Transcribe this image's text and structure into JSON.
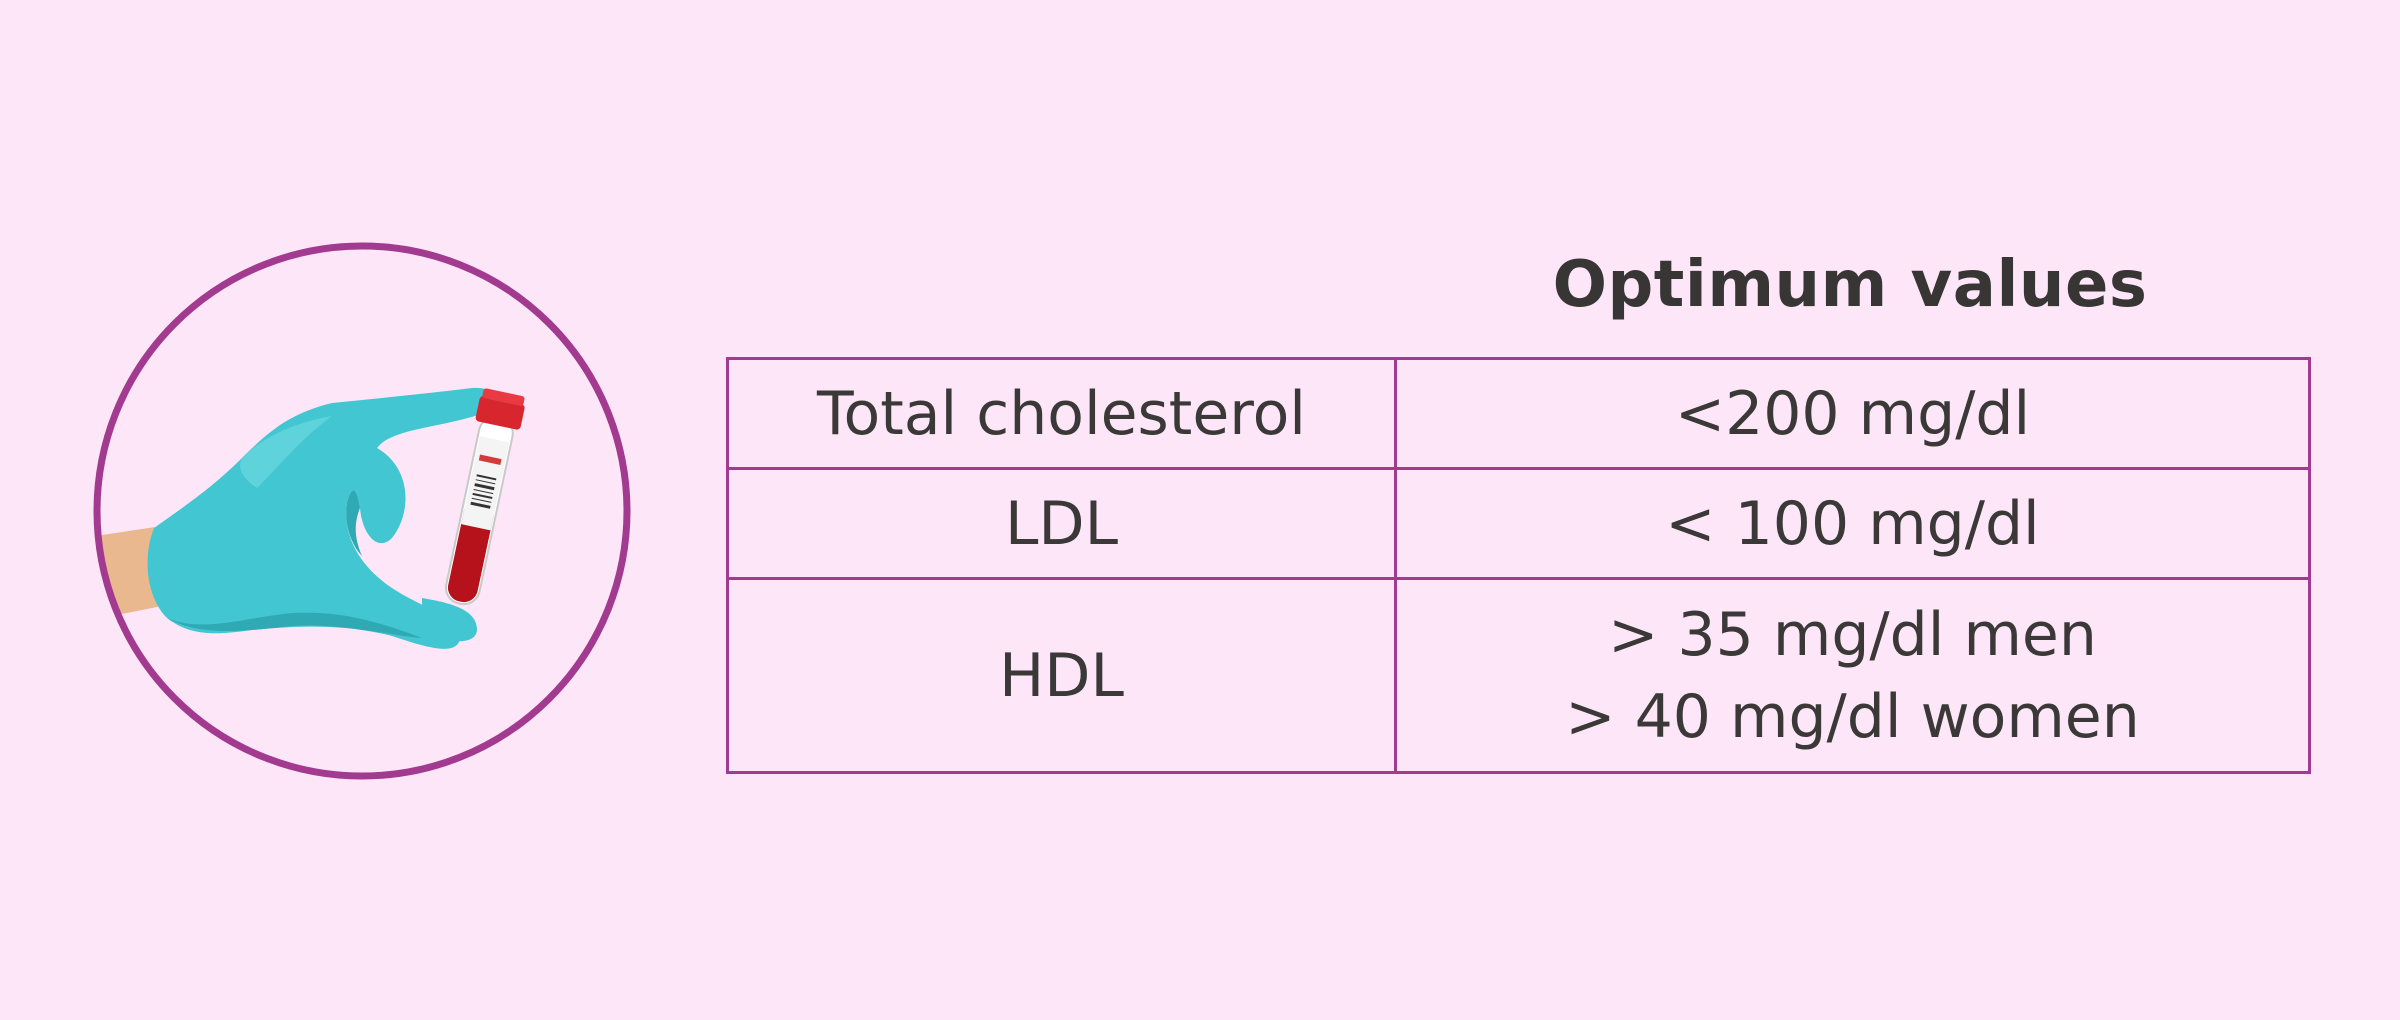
{
  "header": {
    "title": "Optimum values"
  },
  "table": {
    "rows": [
      {
        "label": "Total cholesterol",
        "values": [
          "<200 mg/dl"
        ]
      },
      {
        "label": "LDL",
        "values": [
          "< 100 mg/dl"
        ]
      },
      {
        "label": "HDL",
        "values": [
          "> 35 mg/dl men",
          "> 40 mg/dl women"
        ]
      }
    ]
  },
  "colors": {
    "background": "#fde6f8",
    "accent": "#a23a8f",
    "glove": "#3fc4cf",
    "blood": "#b5121b"
  },
  "icons": {
    "main": "gloved-hand-holding-blood-sample-tube-icon"
  }
}
